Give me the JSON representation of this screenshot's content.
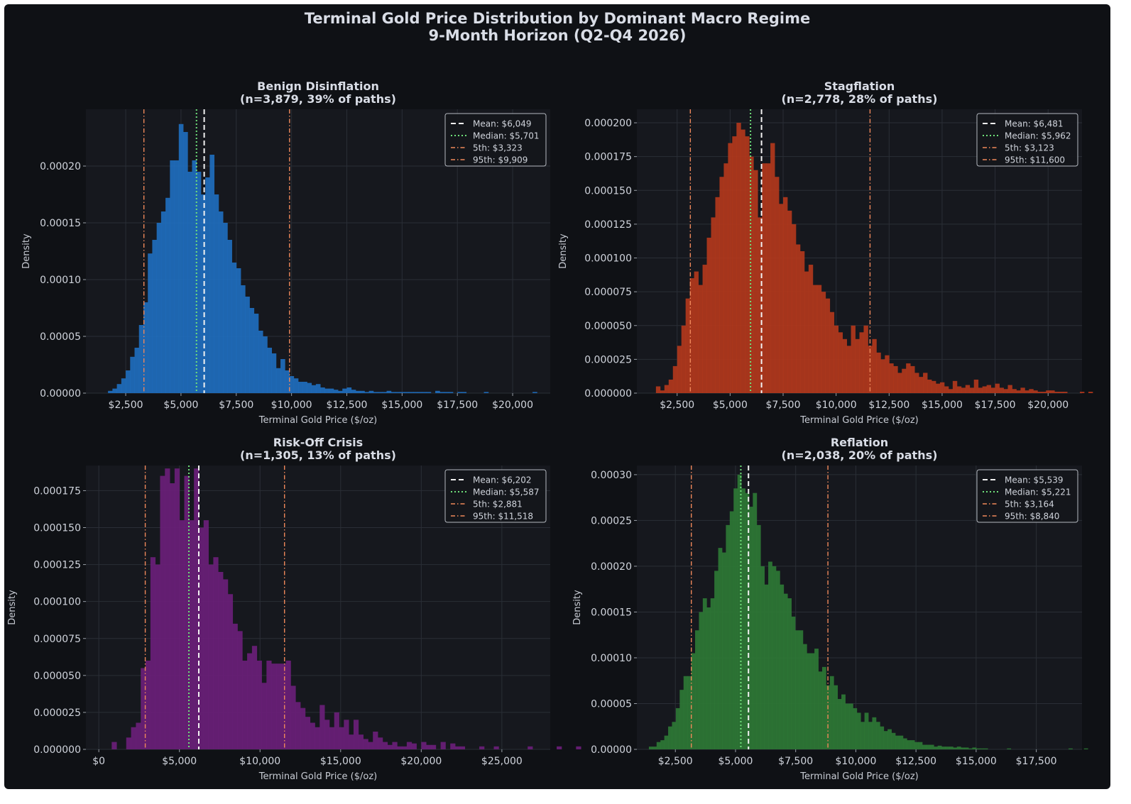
{
  "figure": {
    "title_line1": "Terminal Gold Price Distribution by Dominant Macro Regime",
    "title_line2": "9-Month Horizon (Q2-Q4 2026)"
  },
  "chart_data": [
    {
      "type": "bar",
      "title_line1": "Benign Disinflation",
      "title_line2": "(n=3,879, 39% of paths)",
      "xlabel": "Terminal Gold Price ($/oz)",
      "ylabel": "Density",
      "color": "#1f6fc0",
      "xlim": [
        700,
        21700
      ],
      "ylim": [
        0,
        0.00025
      ],
      "xticks": [
        2500,
        5000,
        7500,
        10000,
        12500,
        15000,
        17500,
        20000
      ],
      "xtick_labels": [
        "$2,500",
        "$5,000",
        "$7,500",
        "$10,000",
        "$12,500",
        "$15,000",
        "$17,500",
        "$20,000"
      ],
      "yticks": [
        0,
        5e-05,
        0.0001,
        0.00015,
        0.0002
      ],
      "ytick_labels": [
        "0.00000",
        "0.00005",
        "0.00010",
        "0.00015",
        "0.00020"
      ],
      "bin_start": 1700,
      "bin_width": 200,
      "densities": [
        2e-06,
        4e-06,
        8e-06,
        1.3e-05,
        2e-05,
        3.2e-05,
        4e-05,
        6e-05,
        8e-05,
        0.000123,
        0.000135,
        0.00015,
        0.00016,
        0.000172,
        0.000205,
        0.000205,
        0.000237,
        0.00023,
        0.000195,
        0.000205,
        0.000195,
        0.000175,
        0.00019,
        0.00021,
        0.000175,
        0.00016,
        0.00015,
        0.000135,
        0.000115,
        0.00011,
        9.5e-05,
        8.5e-05,
        7.5e-05,
        7e-05,
        5.5e-05,
        5e-05,
        4e-05,
        3.5e-05,
        2.2e-05,
        3e-05,
        2e-05,
        1.5e-05,
        1.3e-05,
        1e-05,
        1e-05,
        9e-06,
        7e-06,
        8e-06,
        5e-06,
        4e-06,
        4e-06,
        3e-06,
        2e-06,
        4e-06,
        5e-06,
        3e-06,
        2e-06,
        2e-06,
        1e-06,
        2e-06,
        1e-06,
        1e-06,
        1e-06,
        2e-06,
        1e-06,
        1e-06,
        1e-06,
        1e-06,
        1e-06,
        1e-06,
        1e-06,
        1e-06,
        1e-06,
        0.0,
        2e-06,
        1e-06,
        1e-06,
        1e-06,
        0.0,
        1e-06,
        1e-06,
        0.0,
        0.0,
        0.0,
        0.0,
        1e-06,
        0.0,
        0.0,
        0.0,
        0.0,
        0.0,
        0.0,
        0.0,
        0.0,
        0.0,
        0.0,
        1e-06
      ],
      "mean": 6049,
      "median": 5701,
      "p5": 3323,
      "p95": 9909,
      "legend": [
        "Mean: $6,049",
        "Median: $5,701",
        "5th: $3,323",
        "95th: $9,909"
      ]
    },
    {
      "type": "bar",
      "title_line1": "Stagflation",
      "title_line2": "(n=2,778, 28% of paths)",
      "xlabel": "Terminal Gold Price ($/oz)",
      "ylabel": "Density",
      "color": "#b5391c",
      "xlim": [
        600,
        21600
      ],
      "ylim": [
        0,
        0.00021
      ],
      "xticks": [
        2500,
        5000,
        7500,
        10000,
        12500,
        15000,
        17500,
        20000
      ],
      "xtick_labels": [
        "$2,500",
        "$5,000",
        "$7,500",
        "$10,000",
        "$12,500",
        "$15,000",
        "$17,500",
        "$20,000"
      ],
      "yticks": [
        0,
        2.5e-05,
        5e-05,
        7.5e-05,
        0.0001,
        0.000125,
        0.00015,
        0.000175,
        0.0002
      ],
      "ytick_labels": [
        "0.000000",
        "0.000025",
        "0.000050",
        "0.000075",
        "0.000100",
        "0.000125",
        "0.000150",
        "0.000175",
        "0.000200"
      ],
      "bin_start": 1500,
      "bin_width": 200,
      "densities": [
        5e-06,
        2e-06,
        6e-06,
        1e-05,
        2e-05,
        3.5e-05,
        5e-05,
        7e-05,
        8.5e-05,
        9e-05,
        8e-05,
        9.5e-05,
        0.000115,
        0.00013,
        0.000145,
        0.00016,
        0.00017,
        0.000185,
        0.00019,
        0.0002,
        0.000195,
        0.00019,
        0.000175,
        0.000165,
        0.00013,
        0.00017,
        0.00017,
        0.000185,
        0.00016,
        0.00014,
        0.000145,
        0.000135,
        0.000125,
        0.00011,
        0.000105,
        9e-05,
        9.5e-05,
        8e-05,
        8e-05,
        7.5e-05,
        7e-05,
        6e-05,
        5e-05,
        4.5e-05,
        4e-05,
        3.5e-05,
        5e-05,
        4e-05,
        4.5e-05,
        5e-05,
        3.5e-05,
        4e-05,
        3e-05,
        2.5e-05,
        2.8e-05,
        2.2e-05,
        2e-05,
        1.5e-05,
        1.8e-05,
        2.2e-05,
        2e-05,
        1.5e-05,
        1.2e-05,
        1.5e-05,
        1e-05,
        9e-06,
        7e-06,
        8e-06,
        5e-06,
        3e-06,
        9e-06,
        5e-06,
        4e-06,
        6e-06,
        4e-06,
        1e-05,
        4e-06,
        5e-06,
        6e-06,
        4e-06,
        7e-06,
        4e-06,
        3e-06,
        6e-06,
        3e-06,
        2e-06,
        4e-06,
        2e-06,
        3e-06,
        2e-06,
        1e-06,
        1e-06,
        2e-06,
        2e-06,
        1e-06,
        1e-06,
        1e-06,
        0.0,
        0.0,
        0.0,
        1e-06,
        0.0,
        1e-06
      ],
      "mean": 6481,
      "median": 5962,
      "p5": 3123,
      "p95": 11600,
      "legend": [
        "Mean: $6,481",
        "Median: $5,962",
        "5th: $3,123",
        "95th: $11,600"
      ]
    },
    {
      "type": "bar",
      "title_line1": "Risk-Off Crisis",
      "title_line2": "(n=1,305, 13% of paths)",
      "xlabel": "Terminal Gold Price ($/oz)",
      "ylabel": "Density",
      "color": "#6b1f7a",
      "xlim": [
        -800,
        28000
      ],
      "ylim": [
        0,
        0.000192
      ],
      "xticks": [
        0,
        5000,
        10000,
        15000,
        20000,
        25000
      ],
      "xtick_labels": [
        "$0",
        "$5,000",
        "$10,000",
        "$15,000",
        "$20,000",
        "$25,000"
      ],
      "yticks": [
        0,
        2.5e-05,
        5e-05,
        7.5e-05,
        0.0001,
        0.000125,
        0.00015,
        0.000175
      ],
      "ytick_labels": [
        "0.000000",
        "0.000025",
        "0.000050",
        "0.000075",
        "0.000100",
        "0.000125",
        "0.000150",
        "0.000175"
      ],
      "bin_start": 800,
      "bin_width": 300,
      "densities": [
        5e-06,
        0.0,
        0.0,
        8e-06,
        1.5e-05,
        1.8e-05,
        5.5e-05,
        6e-05,
        0.00013,
        0.000125,
        0.000185,
        0.00019,
        0.00018,
        0.00019,
        0.000155,
        0.000185,
        0.000155,
        0.00019,
        0.00015,
        0.000155,
        0.000125,
        0.00013,
        0.00012,
        0.000115,
        0.000105,
        8.5e-05,
        8e-05,
        6e-05,
        6.5e-05,
        7e-05,
        6e-05,
        4.5e-05,
        6e-05,
        5.8e-05,
        5.8e-05,
        5.8e-05,
        6e-05,
        4.3e-05,
        3.2e-05,
        2.8e-05,
        2.2e-05,
        1.8e-05,
        1.5e-05,
        3e-05,
        2e-05,
        1.5e-05,
        2.5e-05,
        1.5e-05,
        2e-05,
        1e-05,
        2e-05,
        1e-05,
        7e-06,
        5e-06,
        1.2e-05,
        8e-06,
        5e-06,
        3e-06,
        5e-06,
        2e-06,
        2e-06,
        5e-06,
        4e-06,
        0.0,
        5e-06,
        3e-06,
        3e-06,
        0.0,
        5e-06,
        0.0,
        4e-06,
        2e-06,
        2e-06,
        0.0,
        0.0,
        0.0,
        2e-06,
        0.0,
        0.0,
        2e-06,
        0.0,
        0.0,
        0.0,
        0.0,
        0.0,
        0.0,
        2e-06,
        0.0,
        0.0,
        0.0,
        0.0,
        0.0,
        2e-06,
        0.0,
        0.0,
        0.0,
        2e-06,
        0.0,
        0.0,
        0.0,
        0.0,
        0.0,
        0.0,
        0.0,
        0.0,
        0.0,
        0.0,
        0.0,
        0.0,
        0.0,
        0.0,
        0.0,
        0.0,
        0.0,
        0.0,
        0.0,
        0.0,
        0.0,
        0.0,
        0.0,
        0.0,
        0.0,
        0.0,
        0.0,
        0.0,
        0.0,
        0.0,
        0.0,
        0.0,
        0.0,
        0.0,
        0.0,
        0.0,
        0.0,
        0.0,
        0.0,
        0.0,
        0.0,
        0.0,
        0.0,
        0.0,
        0.0,
        0.0,
        0.0,
        0.0,
        0.0,
        0.0,
        0.0,
        0.0,
        0.0,
        0.0,
        0.0,
        0.0,
        0.0,
        0.0,
        0.0,
        0.0,
        0.0,
        0.0,
        0.0,
        0.0,
        0.0,
        0.0,
        0.0,
        0.0,
        0.0,
        0.0,
        0.0,
        0.0,
        0.0,
        0.0,
        0.0,
        0.0,
        0.0,
        0.0,
        0.0,
        0.0,
        0.0,
        0.0,
        0.0,
        0.0,
        0.0,
        0.0,
        0.0,
        0.0,
        0.0,
        0.0,
        0.0,
        0.0,
        0.0,
        0.0,
        0.0,
        0.0,
        0.0
      ],
      "mean": 6202,
      "median": 5587,
      "p5": 2881,
      "p95": 11518,
      "legend": [
        "Mean: $6,202",
        "Median: $5,587",
        "5th: $2,881",
        "95th: $11,518"
      ]
    },
    {
      "type": "bar",
      "title_line1": "Reflation",
      "title_line2": "(n=2,038, 20% of paths)",
      "xlabel": "Terminal Gold Price ($/oz)",
      "ylabel": "Density",
      "color": "#2e7a35",
      "xlim": [
        900,
        19400
      ],
      "ylim": [
        0,
        0.00031
      ],
      "xticks": [
        2500,
        5000,
        7500,
        10000,
        12500,
        15000,
        17500
      ],
      "xtick_labels": [
        "$2,500",
        "$5,000",
        "$7,500",
        "$10,000",
        "$12,500",
        "$15,000",
        "$17,500"
      ],
      "yticks": [
        0,
        5e-05,
        0.0001,
        0.00015,
        0.0002,
        0.00025,
        0.0003
      ],
      "ytick_labels": [
        "0.00000",
        "0.00005",
        "0.00010",
        "0.00015",
        "0.00020",
        "0.00025",
        "0.00030"
      ],
      "bin_start": 1400,
      "bin_width": 160,
      "densities": [
        3e-06,
        3e-06,
        8e-06,
        1e-05,
        1.5e-05,
        2.5e-05,
        3e-05,
        4.5e-05,
        6.5e-05,
        8e-05,
        8e-05,
        0.000105,
        0.00013,
        0.00015,
        0.000165,
        0.000155,
        0.000165,
        0.000195,
        0.00022,
        0.000215,
        0.000245,
        0.00026,
        0.000285,
        0.0003,
        0.000285,
        0.00028,
        0.000265,
        0.00028,
        0.000245,
        0.0002,
        0.00018,
        0.000205,
        0.0002,
        0.000195,
        0.00018,
        0.00017,
        0.000165,
        0.000145,
        0.00013,
        0.00013,
        0.000115,
        0.000105,
        0.000105,
        0.00011,
        8.5e-05,
        9e-05,
        7e-05,
        8e-05,
        7e-05,
        5.5e-05,
        6e-05,
        5e-05,
        5e-05,
        4.5e-05,
        4e-05,
        3e-05,
        4e-05,
        3e-05,
        3.5e-05,
        3e-05,
        2.5e-05,
        2e-05,
        2.2e-05,
        1.8e-05,
        1.5e-05,
        1.5e-05,
        1.2e-05,
        1e-05,
        1e-05,
        8e-06,
        8e-06,
        5e-06,
        5e-06,
        5e-06,
        3e-06,
        4e-06,
        3e-06,
        3e-06,
        3e-06,
        2e-06,
        3e-06,
        2e-06,
        2e-06,
        1e-06,
        2e-06,
        1e-06,
        1e-06,
        1e-06,
        0.0,
        0.0,
        0.0,
        0.0,
        0.0,
        1e-06,
        0.0,
        0.0,
        0.0,
        0.0,
        0.0,
        0.0,
        0.0,
        0.0,
        0.0,
        0.0,
        0.0,
        0.0,
        0.0,
        0.0,
        0.0,
        1e-06,
        0.0,
        0.0,
        0.0,
        1e-06,
        0.0,
        0.0,
        0.0,
        0.0,
        0.0,
        0.0,
        0.0,
        0.0,
        1e-06,
        0.0,
        0.0,
        0.0,
        0.0,
        0.0,
        0.0,
        0.0,
        0.0,
        0.0,
        0.0,
        0.0,
        0.0,
        0.0,
        0.0,
        0.0,
        0.0,
        0.0,
        0.0,
        0.0,
        0.0,
        0.0,
        1e-06
      ],
      "mean": 5539,
      "median": 5221,
      "p5": 3164,
      "p95": 8840,
      "legend": [
        "Mean: $5,539",
        "Median: $5,221",
        "5th: $3,164",
        "95th: $8,840"
      ]
    }
  ]
}
